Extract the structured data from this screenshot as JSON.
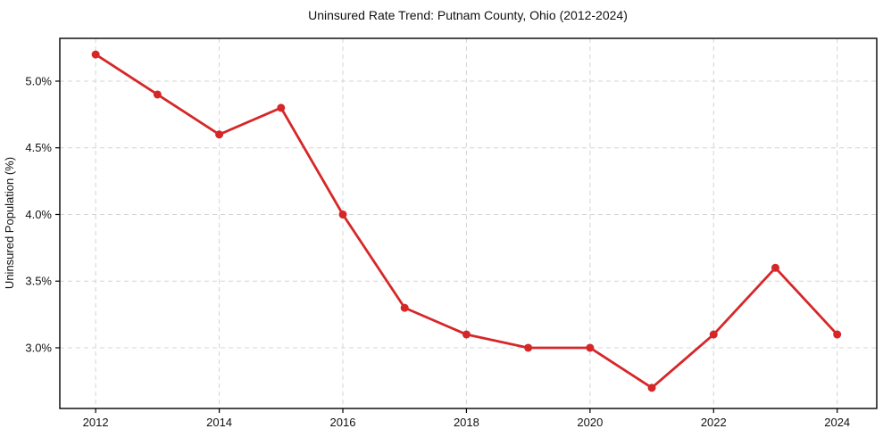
{
  "chart_data": {
    "type": "line",
    "title": "Uninsured Rate Trend: Putnam County, Ohio (2012-2024)",
    "xlabel": "",
    "ylabel": "Uninsured Population (%)",
    "x": [
      2012,
      2013,
      2014,
      2015,
      2016,
      2017,
      2018,
      2019,
      2020,
      2021,
      2022,
      2023,
      2024
    ],
    "series": [
      {
        "name": "Uninsured Rate",
        "values": [
          5.2,
          4.9,
          4.6,
          4.8,
          4.0,
          3.3,
          3.1,
          3.0,
          3.0,
          2.7,
          3.1,
          3.6,
          3.1
        ]
      }
    ],
    "x_ticks": [
      2012,
      2014,
      2016,
      2018,
      2020,
      2022,
      2024
    ],
    "x_tick_labels": [
      "2012",
      "2014",
      "2016",
      "2018",
      "2020",
      "2022",
      "2024"
    ],
    "y_ticks": [
      3.0,
      3.5,
      4.0,
      4.5,
      5.0
    ],
    "y_tick_labels": [
      "3.0%",
      "3.5%",
      "4.0%",
      "4.5%",
      "5.0%"
    ],
    "xlim": [
      2011.42,
      2024.64
    ],
    "ylim": [
      2.545,
      5.321
    ],
    "grid": true,
    "grid_style": "dashed",
    "legend_position": "none",
    "line_color": "#d62728",
    "marker": "circle",
    "grid_color": "#d4d4d4",
    "axis_color": "#000000",
    "background": "#ffffff"
  }
}
